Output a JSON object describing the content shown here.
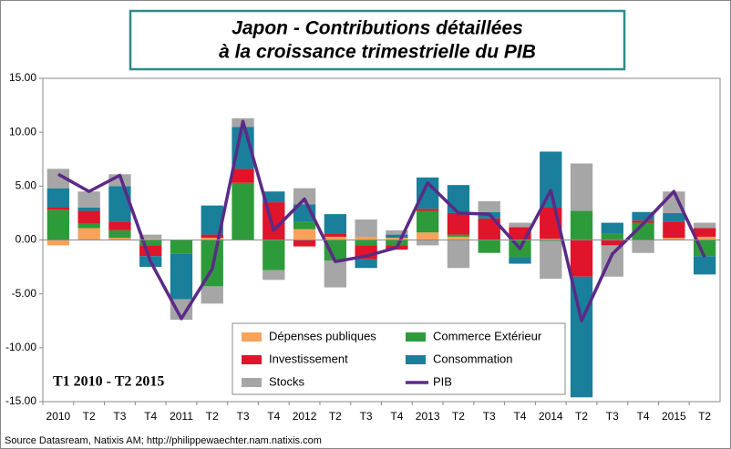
{
  "chart_data": {
    "type": "bar",
    "title": [
      "Japon - Contributions détaillées",
      "à la croissance trimestrielle du PIB"
    ],
    "annotation": "T1 2010 - T2 2015",
    "source": "Source Datasream, Natixis AM;  http://philippewaechter.nam.natixis.com",
    "categories": [
      "2010",
      "T2",
      "T3",
      "T4",
      "2011",
      "T2",
      "T3",
      "T4",
      "2012",
      "T2",
      "T3",
      "T4",
      "2013",
      "T2",
      "T3",
      "T4",
      "2014",
      "T2",
      "T3",
      "T4",
      "2015",
      "T2"
    ],
    "ylim": [
      -15,
      15
    ],
    "yticks": [
      {
        "value": -15,
        "label": "-15.00"
      },
      {
        "value": -10,
        "label": "-10.00"
      },
      {
        "value": -5,
        "label": "-5.00"
      },
      {
        "value": 0,
        "label": "0.00"
      },
      {
        "value": 5,
        "label": "5.00"
      },
      {
        "value": 10,
        "label": "10.00"
      },
      {
        "value": 15,
        "label": "15.00"
      }
    ],
    "series": [
      {
        "name": "Dépenses publiques",
        "color": "#f8a25a",
        "values": [
          -0.5,
          1.1,
          0.2,
          0.1,
          0,
          0.2,
          0,
          0,
          1.0,
          0.3,
          0.3,
          0.2,
          0.7,
          0.3,
          0,
          0,
          0.1,
          0,
          0,
          0,
          0.2,
          0.3
        ]
      },
      {
        "name": "Commerce Extérieur",
        "color": "#2e9b3a",
        "values": [
          2.8,
          0.4,
          0.7,
          -0.5,
          -1.3,
          -4.3,
          5.3,
          -2.8,
          0.7,
          -1.9,
          -0.5,
          -0.5,
          2.0,
          0.2,
          -1.2,
          -1.6,
          -0.1,
          2.7,
          0.6,
          1.6,
          0,
          -1.5
        ]
      },
      {
        "name": "Investissement",
        "color": "#e0142a",
        "values": [
          0.2,
          1.2,
          0.8,
          -1.0,
          0,
          0.3,
          1.3,
          3.5,
          -0.6,
          0.3,
          -1.3,
          -0.4,
          0.2,
          2.0,
          2.0,
          1.2,
          2.9,
          -3.4,
          -0.5,
          0.2,
          1.5,
          0.8
        ]
      },
      {
        "name": "Consommation",
        "color": "#1a7f9a",
        "values": [
          1.8,
          0.3,
          3.3,
          -1.0,
          -4.2,
          2.7,
          3.9,
          1.0,
          1.6,
          1.8,
          -0.8,
          0.3,
          2.9,
          2.6,
          0.6,
          -0.6,
          5.2,
          -11.2,
          1.0,
          0.8,
          0.8,
          -1.7
        ]
      },
      {
        "name": "Stocks",
        "color": "#a6a6a6",
        "values": [
          1.8,
          1.5,
          1.1,
          0.4,
          -1.9,
          -1.6,
          0.8,
          -0.9,
          1.5,
          -2.5,
          1.6,
          0.4,
          -0.5,
          -2.6,
          1.0,
          0.4,
          -3.5,
          4.4,
          -2.9,
          -1.2,
          2.0,
          0.5
        ]
      },
      {
        "name": "PIB",
        "color": "#5b2a86",
        "type": "line",
        "values": [
          6.1,
          4.5,
          6.0,
          -2.0,
          -7.3,
          -2.7,
          11.0,
          0.9,
          3.8,
          -2.0,
          -1.5,
          -0.7,
          5.3,
          2.5,
          2.4,
          -0.8,
          4.6,
          -7.5,
          -1.3,
          1.5,
          4.5,
          -1.6
        ]
      }
    ]
  }
}
